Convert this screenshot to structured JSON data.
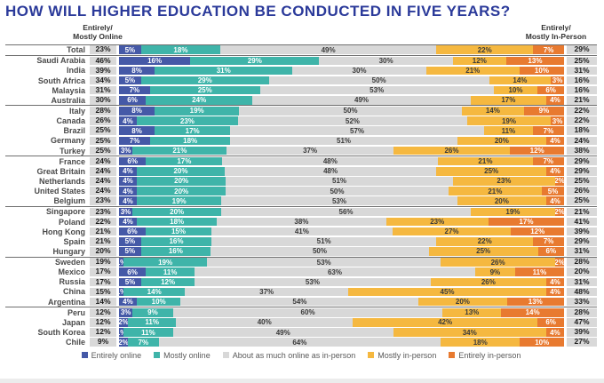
{
  "title": "HOW WILL HIGHER EDUCATION BE CONDUCTED IN FIVE YEARS?",
  "left_header": {
    "line1": "Entirely/",
    "line2": "Mostly Online"
  },
  "right_header": {
    "line1": "Entirely/",
    "line2": "Mostly In-Person"
  },
  "colors": {
    "title": "#2b3a9a",
    "entirely_online": "#4559a7",
    "mostly_online": "#3fb4a9",
    "about_equal": "#d8d8d8",
    "mostly_in_person": "#f5b840",
    "entirely_in_person": "#e87a30",
    "total_chip_bg": "#d9d9d9",
    "separator": "#6f6f6f"
  },
  "chart_data": {
    "type": "bar",
    "stacked": true,
    "orientation": "horizontal",
    "unit": "%",
    "xlim": [
      0,
      100
    ],
    "title": "HOW WILL HIGHER EDUCATION BE CONDUCTED IN FIVE YEARS?",
    "legend_position": "bottom",
    "series": [
      {
        "key": "entirely-online",
        "name": "Entirely online",
        "color": "#4559a7",
        "label_color": "#ffffff"
      },
      {
        "key": "mostly-online",
        "name": "Mostly online",
        "color": "#3fb4a9",
        "label_color": "#ffffff"
      },
      {
        "key": "about-as-much-online-as-in-person",
        "name": "About as much online as in-person",
        "color": "#d8d8d8",
        "label_color": "#3a3a3a"
      },
      {
        "key": "mostly-in-person",
        "name": "Mostly in-person",
        "color": "#f5b840",
        "label_color": "#3a3a3a"
      },
      {
        "key": "entirely-in-person",
        "name": "Entirely in-person",
        "color": "#e87a30",
        "label_color": "#ffffff"
      }
    ],
    "rows": [
      {
        "label": "Total",
        "left_total": 23,
        "values": [
          5,
          18,
          49,
          22,
          7
        ],
        "right_total": 29,
        "separator_after": true
      },
      {
        "label": "Saudi Arabia",
        "left_total": 46,
        "values": [
          16,
          29,
          30,
          12,
          13
        ],
        "right_total": 25,
        "separator_after": false
      },
      {
        "label": "India",
        "left_total": 39,
        "values": [
          8,
          31,
          30,
          21,
          10
        ],
        "right_total": 31,
        "separator_after": false
      },
      {
        "label": "South Africa",
        "left_total": 34,
        "values": [
          5,
          29,
          50,
          14,
          3
        ],
        "right_total": 16,
        "separator_after": false
      },
      {
        "label": "Malaysia",
        "left_total": 31,
        "values": [
          7,
          25,
          53,
          10,
          6
        ],
        "right_total": 16,
        "separator_after": false
      },
      {
        "label": "Australia",
        "left_total": 30,
        "values": [
          6,
          24,
          49,
          17,
          4
        ],
        "right_total": 21,
        "separator_after": true
      },
      {
        "label": "Italy",
        "left_total": 28,
        "values": [
          8,
          19,
          50,
          14,
          9
        ],
        "right_total": 22,
        "separator_after": false
      },
      {
        "label": "Canada",
        "left_total": 26,
        "values": [
          4,
          23,
          52,
          19,
          3
        ],
        "right_total": 22,
        "separator_after": false
      },
      {
        "label": "Brazil",
        "left_total": 25,
        "values": [
          8,
          17,
          57,
          11,
          7
        ],
        "right_total": 18,
        "separator_after": false
      },
      {
        "label": "Germany",
        "left_total": 25,
        "values": [
          7,
          18,
          51,
          20,
          4
        ],
        "right_total": 24,
        "separator_after": false
      },
      {
        "label": "Turkey",
        "left_total": 25,
        "values": [
          3,
          21,
          37,
          26,
          12
        ],
        "right_total": 38,
        "separator_after": true
      },
      {
        "label": "France",
        "left_total": 24,
        "values": [
          6,
          17,
          48,
          21,
          7
        ],
        "right_total": 29,
        "separator_after": false
      },
      {
        "label": "Great Britain",
        "left_total": 24,
        "values": [
          4,
          20,
          48,
          25,
          4
        ],
        "right_total": 29,
        "separator_after": false
      },
      {
        "label": "Netherlands",
        "left_total": 24,
        "values": [
          4,
          20,
          51,
          23,
          2
        ],
        "right_total": 25,
        "separator_after": false
      },
      {
        "label": "United States",
        "left_total": 24,
        "values": [
          4,
          20,
          50,
          21,
          5
        ],
        "right_total": 26,
        "separator_after": false
      },
      {
        "label": "Belgium",
        "left_total": 23,
        "values": [
          4,
          19,
          53,
          20,
          4
        ],
        "right_total": 25,
        "separator_after": true
      },
      {
        "label": "Singapore",
        "left_total": 23,
        "values": [
          3,
          20,
          56,
          19,
          2
        ],
        "right_total": 21,
        "separator_after": false
      },
      {
        "label": "Poland",
        "left_total": 22,
        "values": [
          4,
          18,
          38,
          23,
          17
        ],
        "right_total": 41,
        "separator_after": false
      },
      {
        "label": "Hong Kong",
        "left_total": 21,
        "values": [
          6,
          15,
          41,
          27,
          12
        ],
        "right_total": 39,
        "separator_after": false
      },
      {
        "label": "Spain",
        "left_total": 21,
        "values": [
          5,
          16,
          51,
          22,
          7
        ],
        "right_total": 29,
        "separator_after": false
      },
      {
        "label": "Hungary",
        "left_total": 20,
        "values": [
          5,
          16,
          50,
          25,
          6
        ],
        "right_total": 31,
        "separator_after": true
      },
      {
        "label": "Sweden",
        "left_total": 19,
        "values": [
          1,
          19,
          53,
          26,
          2
        ],
        "right_total": 28,
        "separator_after": false
      },
      {
        "label": "Mexico",
        "left_total": 17,
        "values": [
          6,
          11,
          63,
          9,
          11
        ],
        "right_total": 20,
        "separator_after": false
      },
      {
        "label": "Russia",
        "left_total": 17,
        "values": [
          5,
          12,
          53,
          26,
          4
        ],
        "right_total": 31,
        "separator_after": false
      },
      {
        "label": "China",
        "left_total": 15,
        "values": [
          1,
          14,
          37,
          45,
          4
        ],
        "right_total": 48,
        "separator_after": false
      },
      {
        "label": "Argentina",
        "left_total": 14,
        "values": [
          4,
          10,
          54,
          20,
          13
        ],
        "right_total": 33,
        "separator_after": true
      },
      {
        "label": "Peru",
        "left_total": 12,
        "values": [
          3,
          9,
          60,
          13,
          14
        ],
        "right_total": 28,
        "separator_after": false
      },
      {
        "label": "Japan",
        "left_total": 12,
        "values": [
          2,
          11,
          40,
          42,
          6
        ],
        "right_total": 47,
        "separator_after": false
      },
      {
        "label": "South Korea",
        "left_total": 12,
        "values": [
          1,
          11,
          49,
          34,
          4
        ],
        "right_total": 39,
        "separator_after": false
      },
      {
        "label": "Chile",
        "left_total": 9,
        "values": [
          2,
          7,
          64,
          18,
          10
        ],
        "right_total": 27,
        "separator_after": false
      }
    ]
  }
}
